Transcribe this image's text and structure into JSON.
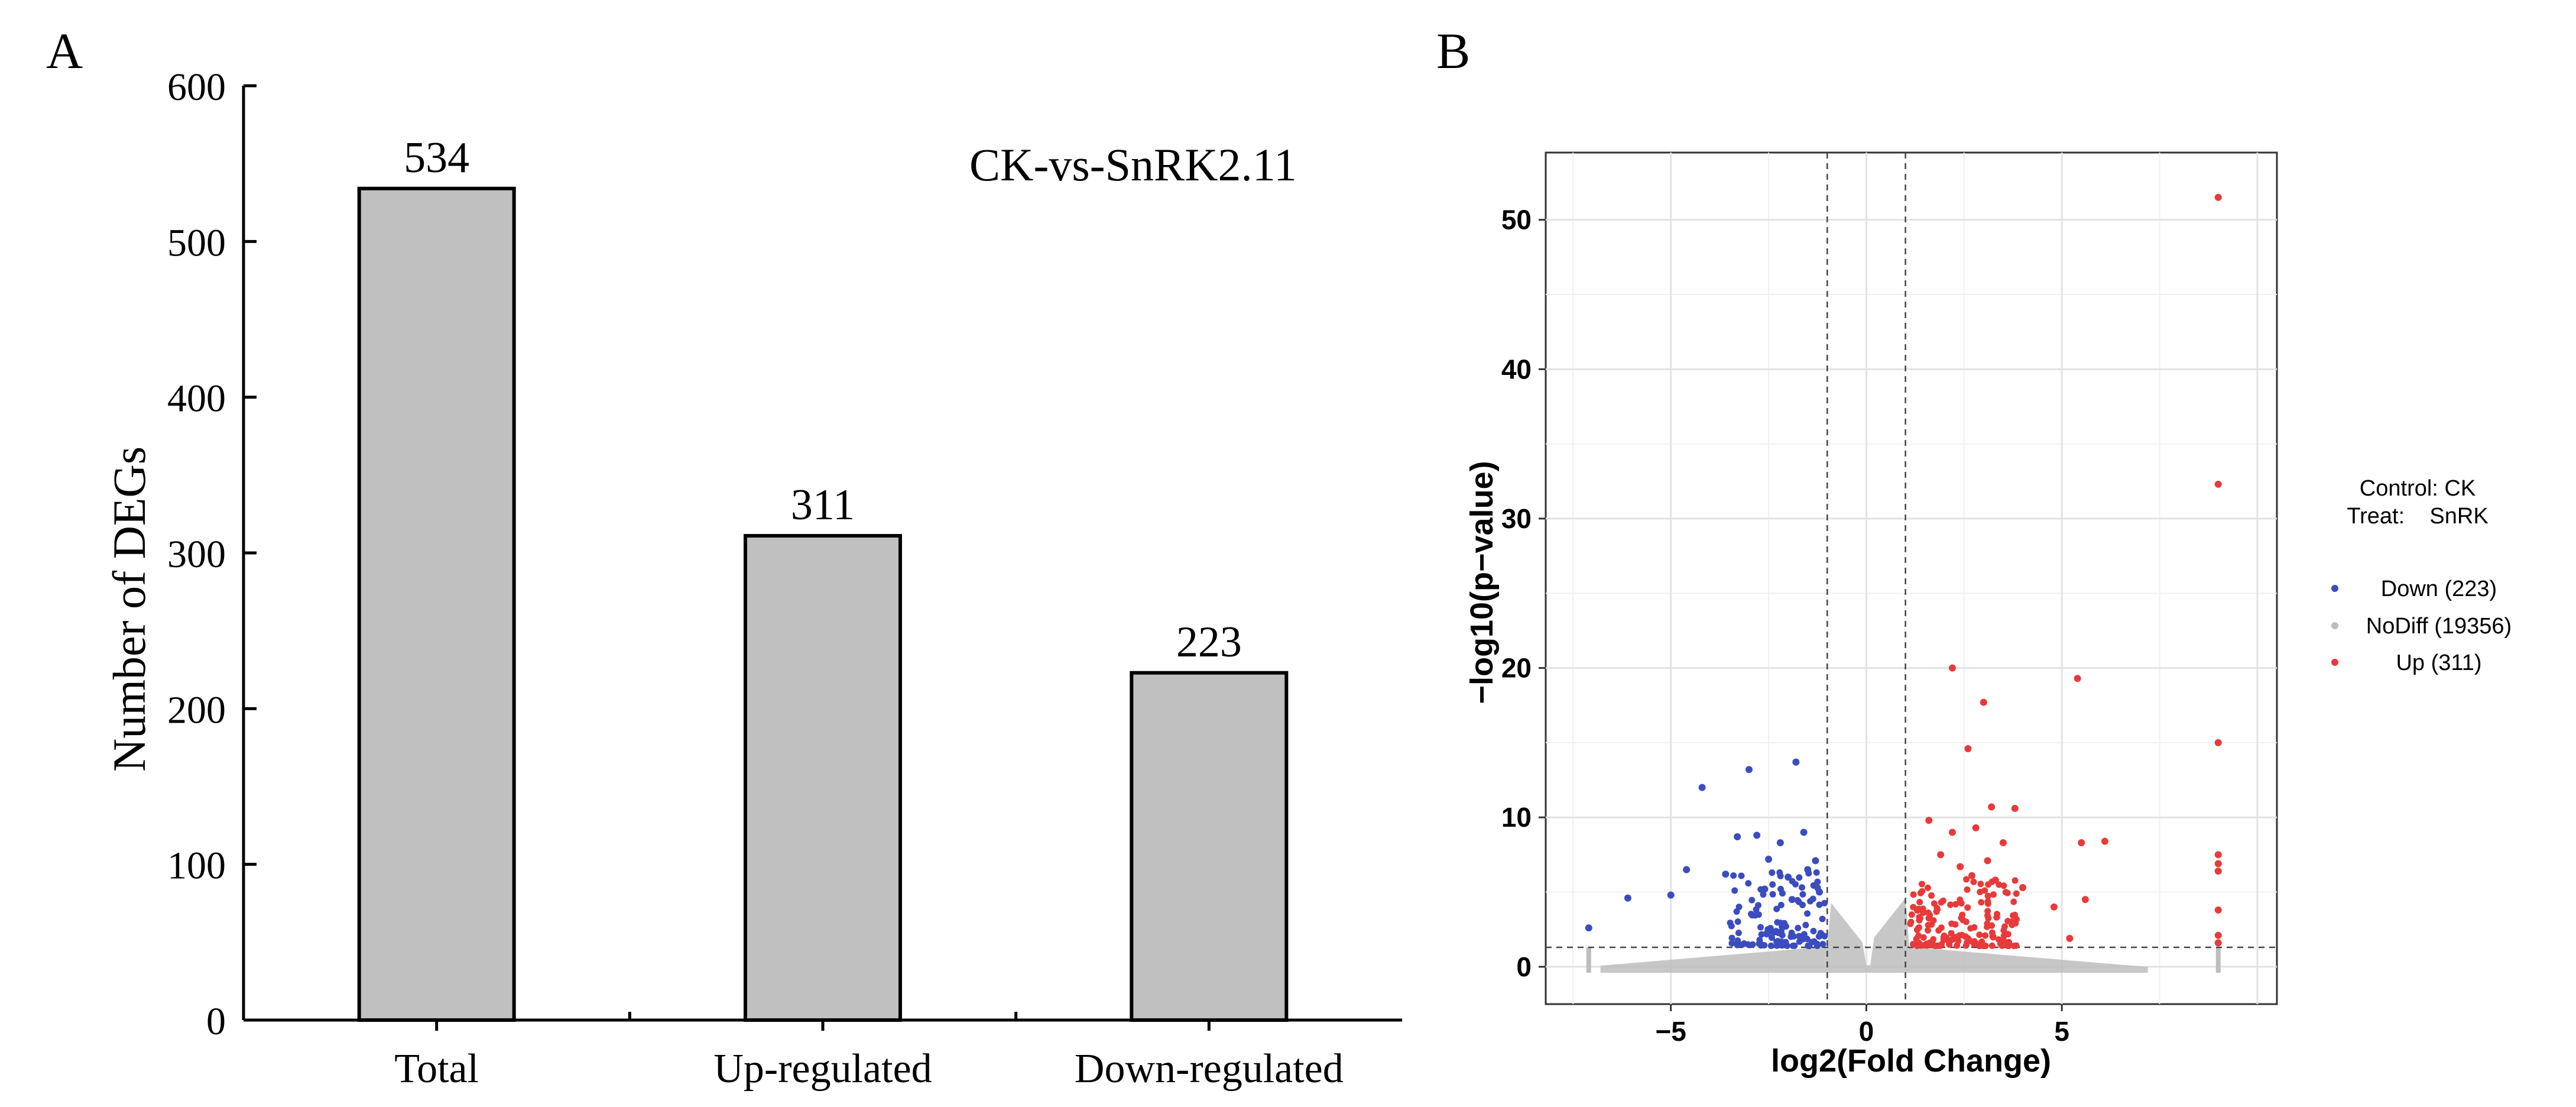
{
  "chart_data": [
    {
      "panel_label": "A",
      "type": "bar",
      "title": "CK-vs-SnRK2.11",
      "xlabel": "",
      "ylabel": "Number of DEGs",
      "categories": [
        "Total",
        "Up-regulated",
        "Down-regulated"
      ],
      "values": [
        534,
        311,
        223
      ],
      "value_labels": [
        "534",
        "311",
        "223"
      ],
      "ylim": [
        0,
        600
      ],
      "yticks": [
        "0",
        "100",
        "200",
        "300",
        "400",
        "500",
        "600"
      ],
      "bar_color": "#c0c0c0",
      "grid": false
    },
    {
      "panel_label": "B",
      "type": "scatter",
      "xlabel": "log2(Fold Change)",
      "ylabel": "−log10(p−value)",
      "xlim": [
        -8.2,
        10.5
      ],
      "ylim": [
        -2.5,
        54.5
      ],
      "xticks": [
        "−5",
        "0",
        "5"
      ],
      "yticks": [
        "0",
        "10",
        "20",
        "30",
        "40",
        "50"
      ],
      "fc_threshold": 1,
      "pvalue_threshold_log10": 1.3,
      "grid": true,
      "legend": {
        "position": "right",
        "header_lines": [
          "Control: CK",
          "Treat:    SnRK"
        ],
        "entries": [
          {
            "label": "Down (223)",
            "color": "#3b4cc0"
          },
          {
            "label": "NoDiff (19356)",
            "color": "#bdbdbd"
          },
          {
            "label": "Up (311)",
            "color": "#e83a3a"
          }
        ]
      },
      "series": [
        {
          "name": "Down",
          "count": 223,
          "color": "#3b4cc0",
          "points": [
            [
              -7.1,
              2.6
            ],
            [
              -6.1,
              4.6
            ],
            [
              -5.0,
              4.8
            ],
            [
              -4.6,
              6.5
            ],
            [
              -4.2,
              12.0
            ],
            [
              -3.3,
              8.7
            ],
            [
              -3.0,
              13.2
            ],
            [
              -2.8,
              8.8
            ],
            [
              -2.5,
              7.2
            ],
            [
              -2.2,
              8.3
            ],
            [
              -2.0,
              6.0
            ],
            [
              -1.8,
              13.7
            ],
            [
              -1.6,
              9.0
            ],
            [
              -1.5,
              6.5
            ],
            [
              -1.3,
              7.1
            ],
            [
              -1.2,
              5.0
            ],
            [
              -3.6,
              6.2
            ],
            [
              -2.6,
              5.2
            ],
            [
              -1.9,
              4.5
            ]
          ]
        },
        {
          "name": "NoDiff",
          "count": 19356,
          "color": "#bdbdbd",
          "points": []
        },
        {
          "name": "Up",
          "count": 311,
          "color": "#e83a3a",
          "points": [
            [
              9.0,
              51.5
            ],
            [
              9.0,
              32.3
            ],
            [
              2.2,
              20.0
            ],
            [
              5.4,
              19.3
            ],
            [
              3.0,
              17.7
            ],
            [
              9.0,
              15.0
            ],
            [
              2.6,
              14.6
            ],
            [
              3.8,
              10.6
            ],
            [
              3.2,
              10.7
            ],
            [
              1.6,
              9.8
            ],
            [
              2.2,
              9.0
            ],
            [
              2.8,
              9.3
            ],
            [
              3.5,
              8.3
            ],
            [
              5.5,
              8.3
            ],
            [
              6.1,
              8.4
            ],
            [
              9.0,
              7.5
            ],
            [
              9.0,
              6.9
            ],
            [
              9.0,
              6.4
            ],
            [
              5.6,
              4.5
            ],
            [
              4.8,
              4.0
            ],
            [
              5.2,
              1.9
            ],
            [
              9.0,
              3.8
            ],
            [
              9.0,
              2.1
            ],
            [
              9.0,
              1.6
            ],
            [
              2.4,
              6.7
            ],
            [
              1.9,
              7.5
            ],
            [
              3.1,
              7.1
            ],
            [
              2.7,
              6.1
            ],
            [
              4.0,
              5.3
            ],
            [
              3.3,
              5.8
            ]
          ]
        }
      ]
    }
  ]
}
